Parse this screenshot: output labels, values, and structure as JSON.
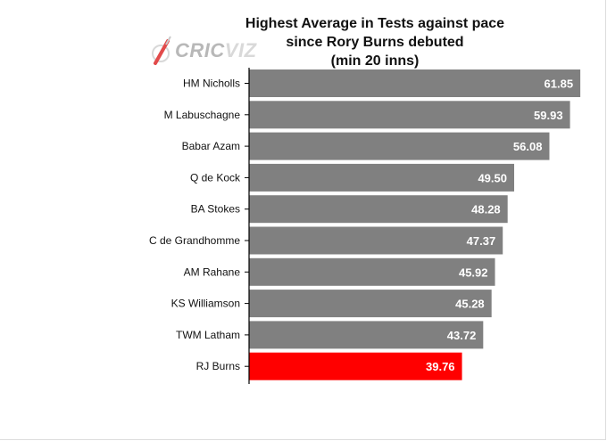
{
  "chart_data": {
    "type": "bar",
    "orientation": "horizontal",
    "title_lines": [
      "Highest Average in Tests against pace",
      "since Rory Burns debuted",
      "(min 20 inns)"
    ],
    "categories": [
      "HM Nicholls",
      "M Labuschagne",
      "Babar Azam",
      "Q de Kock",
      "BA Stokes",
      "C de Grandhomme",
      "AM Rahane",
      "KS Williamson",
      "TWM Latham",
      "RJ Burns"
    ],
    "values": [
      61.85,
      59.93,
      56.08,
      49.5,
      48.28,
      47.37,
      45.92,
      45.28,
      43.72,
      39.76
    ],
    "value_labels": [
      "61.85",
      "59.93",
      "56.08",
      "49.50",
      "48.28",
      "47.37",
      "45.92",
      "45.28",
      "43.72",
      "39.76"
    ],
    "highlight": "RJ Burns",
    "xlim": [
      0,
      62
    ],
    "grid": false,
    "legend": "none"
  },
  "colors": {
    "bar": "#808080",
    "highlight": "#ff0000",
    "axis": "#000000"
  },
  "logo": {
    "brand_part1": "CRIC",
    "brand_part2": "VIZ",
    "icon": "cricket-ball-bat-icon"
  }
}
